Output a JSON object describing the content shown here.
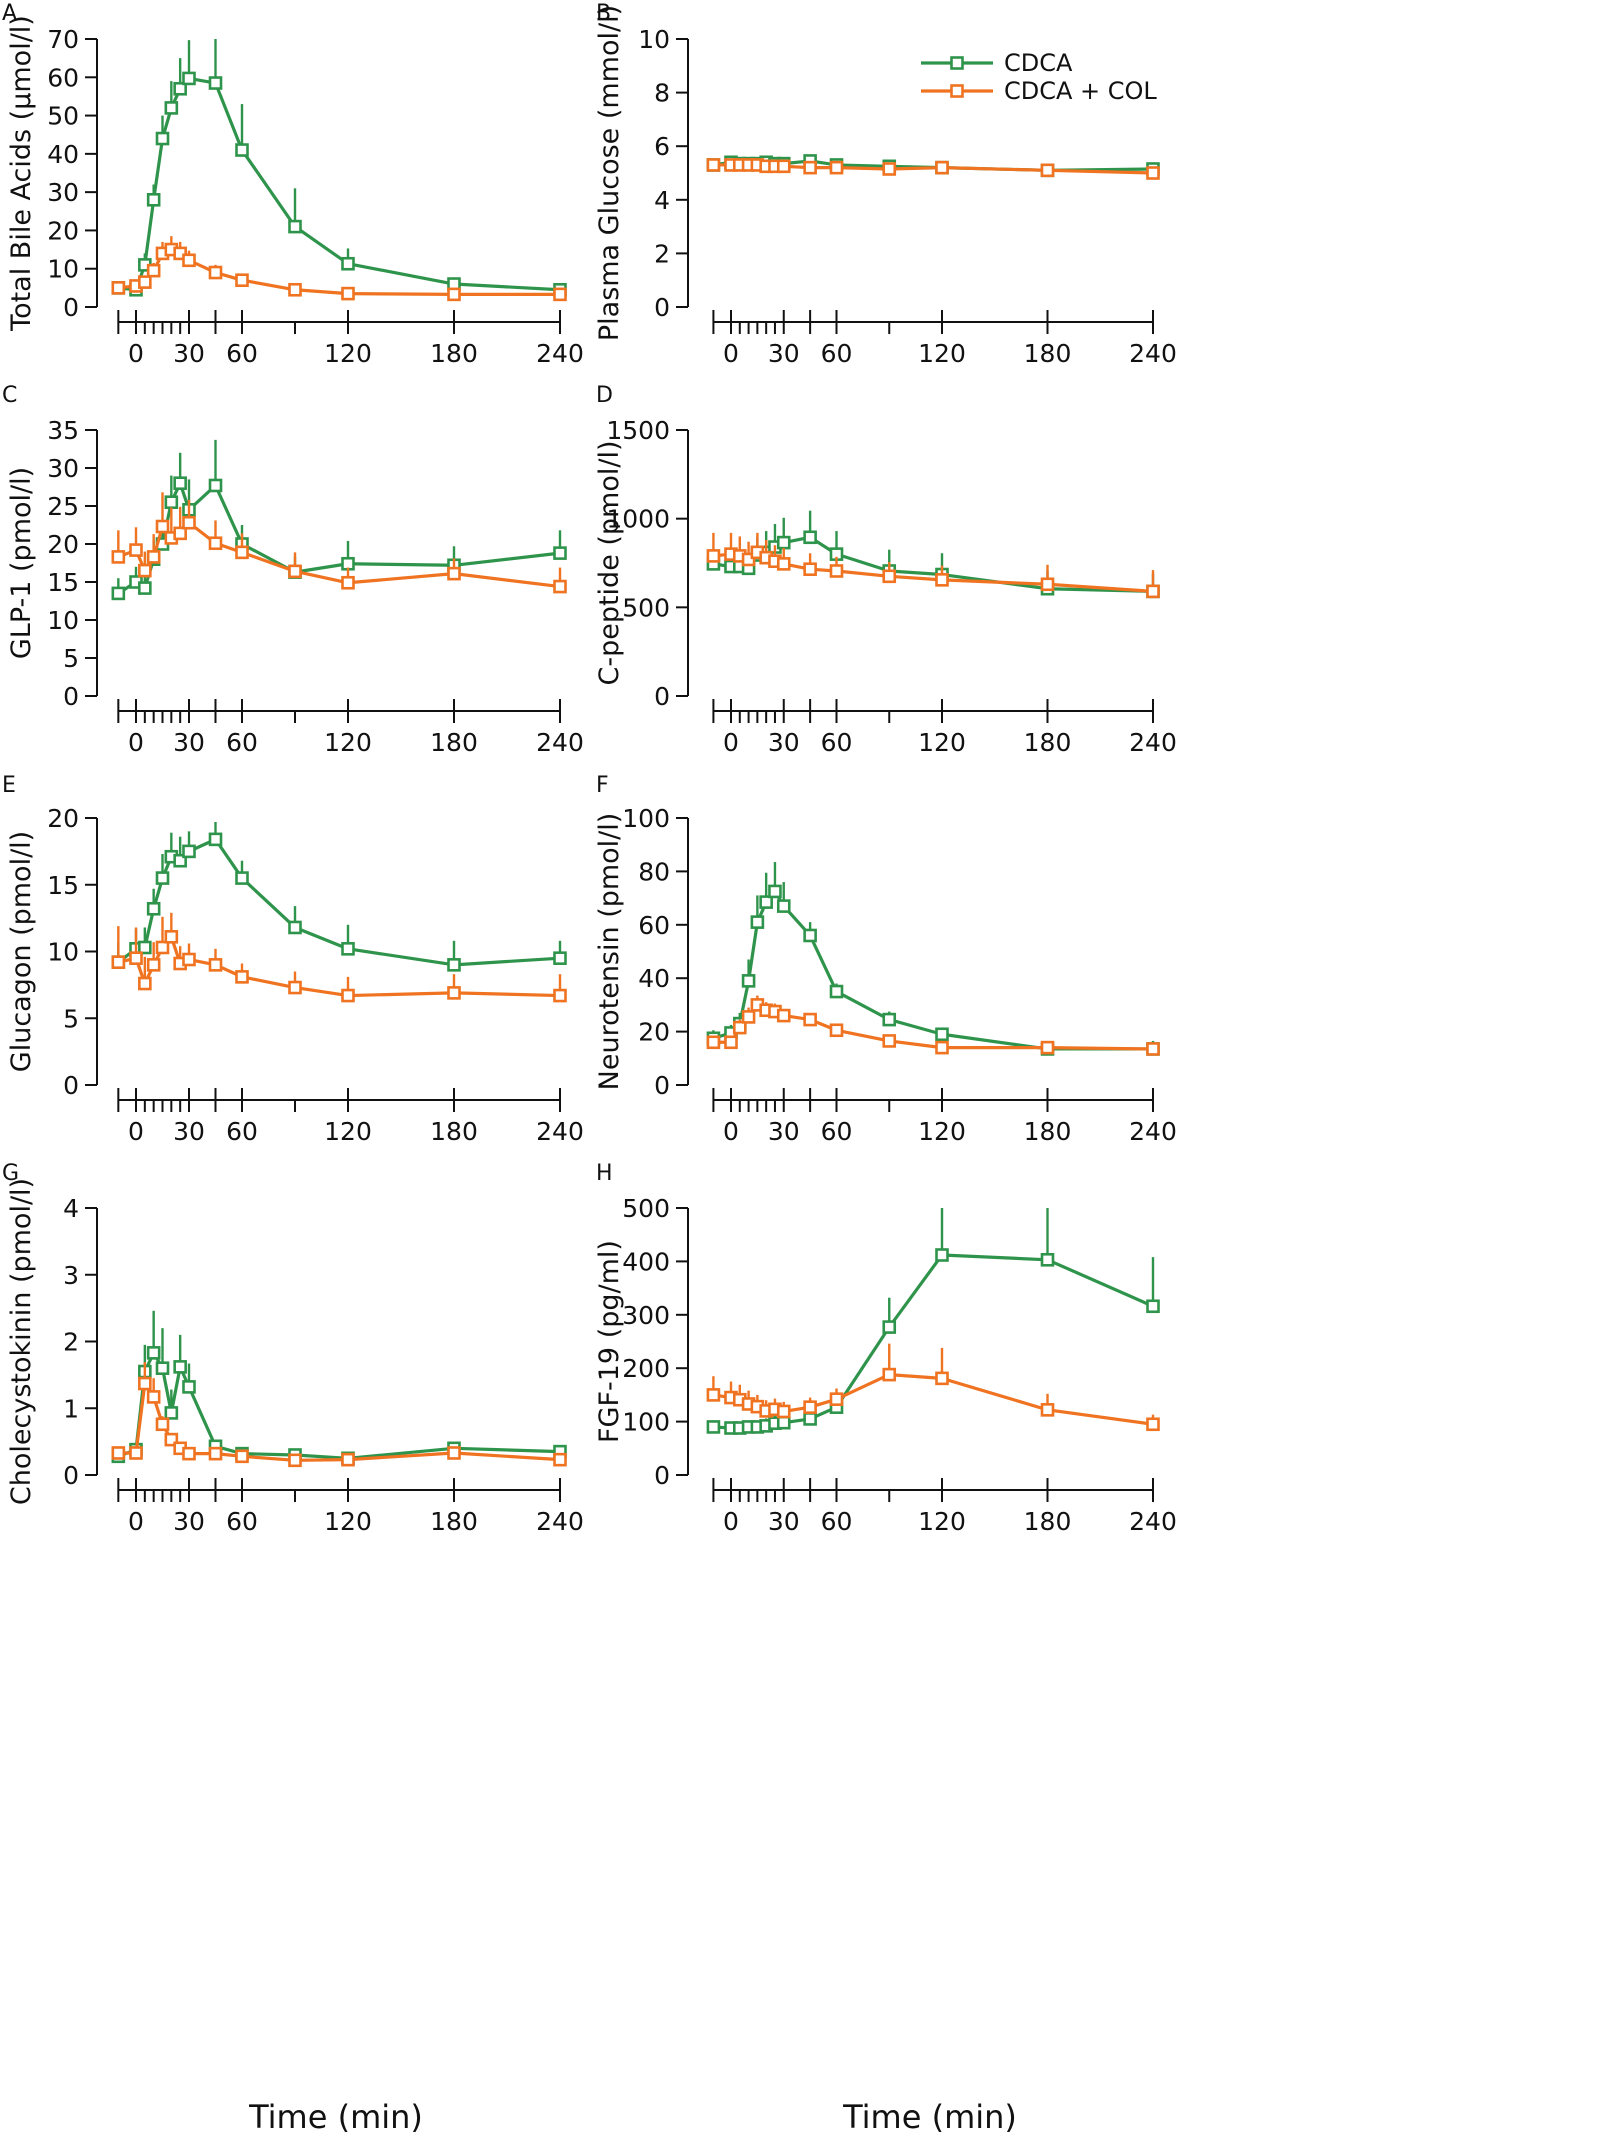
{
  "colors": {
    "cdca": "#2f944b",
    "cdca_col": "#ef7320",
    "axis": "#111111"
  },
  "legend": {
    "items": [
      {
        "label": "CDCA",
        "color": "#2f944b"
      },
      {
        "label": "CDCA + COL",
        "color": "#ef7320"
      }
    ]
  },
  "x_axis": {
    "title": "Time (min)",
    "ticks": [
      -10,
      0,
      5,
      10,
      15,
      20,
      25,
      30,
      45,
      60,
      90,
      120,
      180,
      240
    ],
    "tick_labels": [
      "0",
      "30",
      "60",
      "120",
      "180",
      "240"
    ]
  },
  "chart_data": [
    {
      "panel": "A",
      "type": "line",
      "ylabel": "Total Bile Acids (µmol/l)",
      "ylim": [
        0,
        70
      ],
      "yticks": [
        "0",
        "10",
        "20",
        "30",
        "40",
        "50",
        "60",
        "70"
      ],
      "x": [
        -10,
        0,
        5,
        10,
        15,
        20,
        25,
        30,
        45,
        60,
        90,
        120,
        180,
        240
      ],
      "series": [
        {
          "name": "CDCA",
          "values": [
            5,
            4.5,
            11,
            28,
            44,
            52,
            57,
            59.7,
            58.5,
            41,
            21,
            11.3,
            6,
            4.5
          ],
          "errors": [
            1,
            1,
            3,
            4,
            6,
            7,
            8,
            10,
            12,
            12,
            10,
            4,
            1.5,
            1
          ]
        },
        {
          "name": "CDCA + COL",
          "values": [
            5,
            5.5,
            6.5,
            9.5,
            14,
            15,
            14,
            12.2,
            9,
            7,
            4.5,
            3.5,
            3.3,
            3.3
          ],
          "errors": [
            1,
            1,
            1,
            2,
            3,
            3.5,
            3,
            2.5,
            2,
            1.2,
            0.8,
            0.6,
            0.5,
            0.5
          ]
        }
      ]
    },
    {
      "panel": "B",
      "type": "line",
      "ylabel": "Plasma Glucose (mmol/l)",
      "ylim": [
        0,
        10
      ],
      "yticks": [
        "0",
        "2",
        "4",
        "6",
        "8",
        "10"
      ],
      "x": [
        -10,
        0,
        5,
        10,
        15,
        20,
        25,
        30,
        45,
        60,
        90,
        120,
        180,
        240
      ],
      "series": [
        {
          "name": "CDCA",
          "values": [
            5.3,
            5.4,
            5.35,
            5.35,
            5.35,
            5.4,
            5.35,
            5.35,
            5.45,
            5.3,
            5.25,
            5.2,
            5.1,
            5.15
          ],
          "errors": [
            0.1,
            0.1,
            0.1,
            0.1,
            0.1,
            0.1,
            0.1,
            0.1,
            0.15,
            0.1,
            0.1,
            0.1,
            0.1,
            0.1
          ]
        },
        {
          "name": "CDCA + COL",
          "values": [
            5.3,
            5.3,
            5.3,
            5.3,
            5.3,
            5.25,
            5.25,
            5.25,
            5.2,
            5.2,
            5.15,
            5.2,
            5.1,
            5.0
          ],
          "errors": [
            0.1,
            0.1,
            0.1,
            0.1,
            0.1,
            0.1,
            0.1,
            0.1,
            0.1,
            0.1,
            0.1,
            0.1,
            0.1,
            0.1
          ]
        }
      ]
    },
    {
      "panel": "C",
      "type": "line",
      "ylabel": "GLP-1 (pmol/l)",
      "ylim": [
        0,
        35
      ],
      "yticks": [
        "0",
        "5",
        "10",
        "15",
        "20",
        "25",
        "30",
        "35"
      ],
      "x": [
        -10,
        0,
        5,
        10,
        15,
        20,
        25,
        30,
        45,
        60,
        90,
        120,
        180,
        240
      ],
      "series": [
        {
          "name": "CDCA",
          "values": [
            13.5,
            15,
            14.2,
            18,
            20,
            25.5,
            28,
            24.5,
            27.7,
            20,
            16.3,
            17.4,
            17.2,
            18.8
          ],
          "errors": [
            2,
            2,
            2,
            2.5,
            3,
            3.5,
            4,
            4,
            6,
            2.5,
            2,
            3,
            2.5,
            3
          ]
        },
        {
          "name": "CDCA + COL",
          "values": [
            18.3,
            19.2,
            16.5,
            18.3,
            22.3,
            20.8,
            21.4,
            22.8,
            20.1,
            18.9,
            16.4,
            14.9,
            16.1,
            14.4
          ],
          "errors": [
            3.5,
            3,
            2.5,
            3,
            4.5,
            4,
            3.5,
            3,
            3,
            2.5,
            2.5,
            2,
            2,
            2.5
          ]
        }
      ]
    },
    {
      "panel": "D",
      "type": "line",
      "ylabel": "C-peptide (pmol/l)",
      "ylim": [
        0,
        1500
      ],
      "yticks": [
        "0",
        "500",
        "1000",
        "1500"
      ],
      "x": [
        -10,
        0,
        5,
        10,
        15,
        20,
        25,
        30,
        45,
        60,
        90,
        120,
        180,
        240
      ],
      "series": [
        {
          "name": "CDCA",
          "values": [
            745,
            730,
            730,
            720,
            795,
            810,
            840,
            865,
            895,
            800,
            705,
            685,
            605,
            590
          ],
          "errors": [
            60,
            70,
            70,
            80,
            100,
            120,
            130,
            140,
            150,
            130,
            120,
            120,
            100,
            100
          ]
        },
        {
          "name": "CDCA + COL",
          "values": [
            790,
            800,
            790,
            770,
            810,
            780,
            760,
            745,
            715,
            705,
            675,
            655,
            630,
            590
          ],
          "errors": [
            130,
            120,
            110,
            100,
            110,
            100,
            90,
            90,
            90,
            80,
            80,
            80,
            110,
            120
          ]
        }
      ]
    },
    {
      "panel": "E",
      "type": "line",
      "ylabel": "Glucagon (pmol/l)",
      "ylim": [
        0,
        20
      ],
      "yticks": [
        "0",
        "5",
        "10",
        "15",
        "20"
      ],
      "x": [
        -10,
        0,
        5,
        10,
        15,
        20,
        25,
        30,
        45,
        60,
        90,
        120,
        180,
        240
      ],
      "series": [
        {
          "name": "CDCA",
          "values": [
            9.2,
            10.2,
            10.3,
            13.2,
            15.5,
            17.1,
            16.8,
            17.5,
            18.4,
            15.5,
            11.8,
            10.2,
            9.0,
            9.5
          ],
          "errors": [
            1.5,
            1.5,
            1.5,
            1.5,
            1.8,
            1.8,
            1.8,
            1.5,
            1.3,
            1.3,
            1.6,
            1.8,
            1.8,
            1.3
          ]
        },
        {
          "name": "CDCA + COL",
          "values": [
            9.2,
            9.5,
            7.6,
            9.0,
            10.3,
            11.1,
            9.1,
            9.4,
            9.0,
            8.1,
            7.3,
            6.7,
            6.9,
            6.7
          ],
          "errors": [
            2.7,
            2.3,
            2.0,
            1.7,
            2.3,
            1.8,
            1.3,
            1.2,
            1.2,
            1.0,
            1.2,
            1.4,
            1.4,
            1.6
          ]
        }
      ]
    },
    {
      "panel": "F",
      "type": "line",
      "ylabel": "Neurotensin (pmol/l)",
      "ylim": [
        0,
        100
      ],
      "yticks": [
        "0",
        "20",
        "40",
        "60",
        "80",
        "100"
      ],
      "x": [
        -10,
        0,
        5,
        10,
        15,
        20,
        25,
        30,
        45,
        60,
        90,
        120,
        180,
        240
      ],
      "series": [
        {
          "name": "CDCA",
          "values": [
            17.5,
            19.5,
            23,
            39,
            61,
            68.5,
            72.5,
            67,
            56,
            35,
            24.5,
            19,
            13.5,
            13.5
          ],
          "errors": [
            3,
            3,
            4,
            8,
            10,
            11,
            11,
            9,
            5,
            3,
            3,
            2,
            2,
            3
          ]
        },
        {
          "name": "CDCA + COL",
          "values": [
            16,
            16,
            21.5,
            25.5,
            30,
            28,
            27.5,
            26,
            24.5,
            20.5,
            16.5,
            14,
            14,
            13.5
          ],
          "errors": [
            2,
            2,
            3,
            3.5,
            3.5,
            3,
            3,
            2.5,
            2,
            2,
            2,
            2,
            2,
            2
          ]
        }
      ]
    },
    {
      "panel": "G",
      "type": "line",
      "ylabel": "Cholecystokinin (pmol/l)",
      "ylim": [
        0,
        4
      ],
      "yticks": [
        "0",
        "1",
        "2",
        "3",
        "4"
      ],
      "x": [
        -10,
        0,
        5,
        10,
        15,
        20,
        25,
        30,
        45,
        60,
        90,
        120,
        180,
        240
      ],
      "series": [
        {
          "name": "CDCA",
          "values": [
            0.28,
            0.38,
            1.55,
            1.83,
            1.6,
            0.93,
            1.62,
            1.32,
            0.43,
            0.32,
            0.3,
            0.25,
            0.4,
            0.35
          ],
          "errors": [
            0.05,
            0.08,
            0.4,
            0.63,
            0.6,
            0.35,
            0.48,
            0.35,
            0.1,
            0.06,
            0.06,
            0.05,
            0.1,
            0.07
          ]
        },
        {
          "name": "CDCA + COL",
          "values": [
            0.33,
            0.33,
            1.37,
            1.17,
            0.76,
            0.53,
            0.4,
            0.32,
            0.32,
            0.28,
            0.22,
            0.23,
            0.33,
            0.23
          ],
          "errors": [
            0.05,
            0.05,
            0.32,
            0.28,
            0.12,
            0.08,
            0.06,
            0.05,
            0.05,
            0.05,
            0.04,
            0.04,
            0.06,
            0.04
          ]
        }
      ]
    },
    {
      "panel": "H",
      "type": "line",
      "ylabel": "FGF-19 (pg/ml)",
      "ylim": [
        0,
        500
      ],
      "yticks": [
        "0",
        "100",
        "200",
        "300",
        "400",
        "500"
      ],
      "x": [
        -10,
        0,
        5,
        10,
        15,
        20,
        25,
        30,
        45,
        60,
        90,
        120,
        180,
        240
      ],
      "series": [
        {
          "name": "CDCA",
          "values": [
            90,
            88,
            88,
            90,
            90,
            92,
            97,
            98,
            105,
            127,
            277,
            412,
            403,
            316
          ],
          "errors": [
            12,
            12,
            12,
            12,
            12,
            14,
            14,
            14,
            15,
            20,
            55,
            90,
            105,
            92
          ]
        },
        {
          "name": "CDCA + COL",
          "values": [
            150,
            145,
            141,
            133,
            128,
            120,
            123,
            119,
            127,
            142,
            188,
            181,
            122,
            95
          ],
          "errors": [
            35,
            30,
            28,
            25,
            22,
            20,
            20,
            18,
            18,
            20,
            58,
            57,
            30,
            18
          ]
        }
      ]
    }
  ]
}
